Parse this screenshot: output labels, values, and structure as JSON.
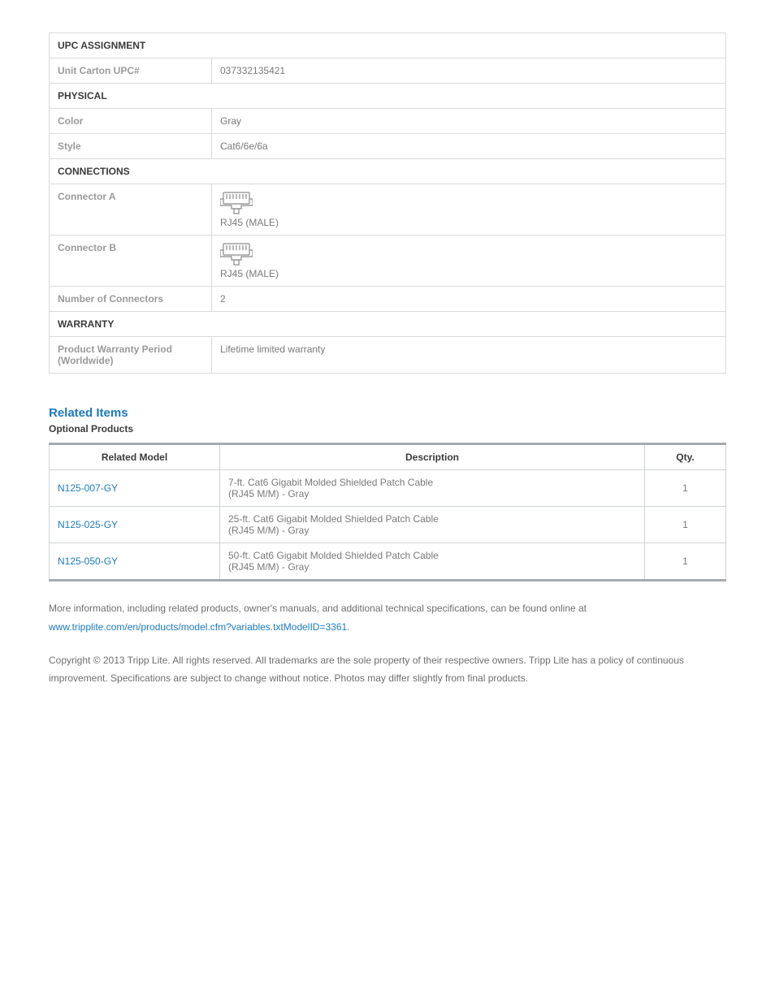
{
  "spec": {
    "sections": [
      {
        "header": "UPC ASSIGNMENT",
        "rows": [
          {
            "label": "Unit Carton UPC#",
            "value": "037332135421",
            "type": "text"
          }
        ]
      },
      {
        "header": "PHYSICAL",
        "rows": [
          {
            "label": "Color",
            "value": "Gray",
            "type": "text"
          },
          {
            "label": "Style",
            "value": "Cat6/6e/6a",
            "type": "text"
          }
        ]
      },
      {
        "header": "CONNECTIONS",
        "rows": [
          {
            "label": "Connector A",
            "value": "RJ45 (MALE)",
            "type": "connector"
          },
          {
            "label": "Connector B",
            "value": "RJ45 (MALE)",
            "type": "connector"
          },
          {
            "label": "Number of Connectors",
            "value": "2",
            "type": "text"
          }
        ]
      },
      {
        "header": "WARRANTY",
        "rows": [
          {
            "label": "Product Warranty Period (Worldwide)",
            "value": "Lifetime limited warranty",
            "type": "text"
          }
        ]
      }
    ]
  },
  "related": {
    "title": "Related Items",
    "subtitle": "Optional Products",
    "columns": {
      "model": "Related Model",
      "desc": "Description",
      "qty": "Qty."
    },
    "items": [
      {
        "model": "N125-007-GY",
        "desc": "7-ft. Cat6 Gigabit Molded Shielded Patch Cable\n(RJ45 M/M) - Gray",
        "qty": "1"
      },
      {
        "model": "N125-025-GY",
        "desc": "25-ft. Cat6 Gigabit Molded Shielded Patch Cable\n(RJ45 M/M) - Gray",
        "qty": "1"
      },
      {
        "model": "N125-050-GY",
        "desc": "50-ft. Cat6 Gigabit Molded Shielded Patch Cable\n(RJ45 M/M) - Gray",
        "qty": "1"
      }
    ]
  },
  "footer": {
    "info_text": "More information, including related products, owner's manuals, and additional technical specifications, can be found online at",
    "info_link": "www.tripplite.com/en/products/model.cfm?variables.txtModelID=3361",
    "copyright": "Copyright © 2013 Tripp Lite. All rights reserved. All trademarks are the sole property of their respective owners. Tripp Lite has a policy of continuous improvement. Specifications are subject to change without notice. Photos may differ slightly from final products."
  }
}
